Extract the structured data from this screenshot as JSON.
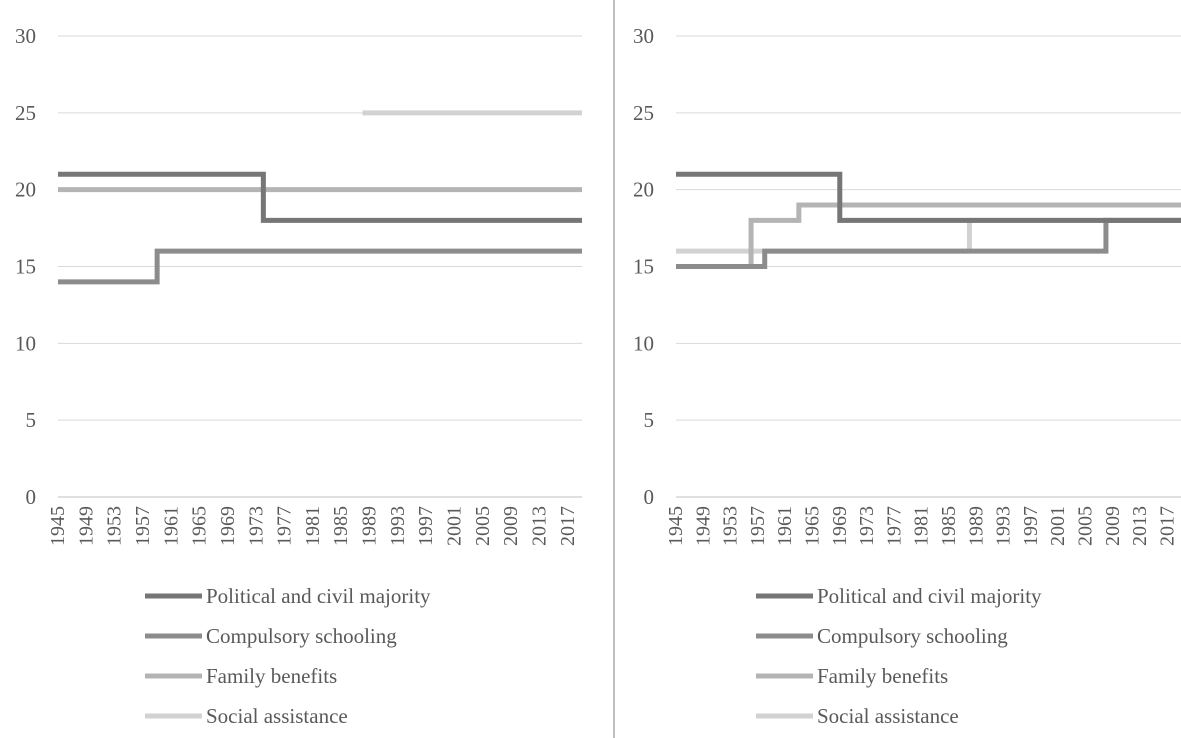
{
  "palette": {
    "political": "#767676",
    "schooling": "#8c8c8c",
    "family": "#b4b4b4",
    "social": "#d2d2d2",
    "grid": "#d9d9d9",
    "divider": "#bfbfbf",
    "text": "#595959"
  },
  "chart_data": [
    {
      "type": "line",
      "step": true,
      "title": "",
      "xlabel": "",
      "ylabel": "",
      "ylim": [
        0,
        30
      ],
      "yticks": [
        "0",
        "5",
        "10",
        "15",
        "20",
        "25",
        "30"
      ],
      "xlim": [
        1945,
        2019
      ],
      "xticks": [
        "1945",
        "1949",
        "1953",
        "1957",
        "1961",
        "1965",
        "1969",
        "1973",
        "1977",
        "1981",
        "1985",
        "1989",
        "1993",
        "1997",
        "2001",
        "2005",
        "2009",
        "2013",
        "2017"
      ],
      "grid": true,
      "legend_position": "bottom",
      "series": [
        {
          "name": "Political and civil majority",
          "color_key": "political",
          "x": [
            1945,
            1974,
            2019
          ],
          "y": [
            21,
            18,
            18
          ]
        },
        {
          "name": "Compulsory schooling",
          "color_key": "schooling",
          "x": [
            1945,
            1959,
            2019
          ],
          "y": [
            14,
            16,
            16
          ]
        },
        {
          "name": "Family benefits",
          "color_key": "family",
          "x": [
            1945,
            2019
          ],
          "y": [
            20,
            20
          ]
        },
        {
          "name": "Social assistance",
          "color_key": "social",
          "x": [
            1988,
            2019
          ],
          "y": [
            25,
            25
          ]
        }
      ]
    },
    {
      "type": "line",
      "step": true,
      "title": "",
      "xlabel": "",
      "ylabel": "",
      "ylim": [
        0,
        30
      ],
      "yticks": [
        "0",
        "5",
        "10",
        "15",
        "20",
        "25",
        "30"
      ],
      "xlim": [
        1945,
        2019
      ],
      "xticks": [
        "1945",
        "1949",
        "1953",
        "1957",
        "1961",
        "1965",
        "1969",
        "1973",
        "1977",
        "1981",
        "1985",
        "1989",
        "1993",
        "1997",
        "2001",
        "2005",
        "2009",
        "2013",
        "2017"
      ],
      "grid": true,
      "legend_position": "bottom",
      "series": [
        {
          "name": "Political and civil majority",
          "color_key": "political",
          "x": [
            1945,
            1969,
            1988,
            2019
          ],
          "y": [
            21,
            18,
            18,
            18
          ]
        },
        {
          "name": "Compulsory schooling",
          "color_key": "schooling",
          "x": [
            1945,
            1958,
            1988,
            2008,
            2019
          ],
          "y": [
            15,
            16,
            16,
            18,
            18
          ]
        },
        {
          "name": "Family benefits",
          "color_key": "family",
          "x": [
            1945,
            1956,
            1963,
            2019
          ],
          "y": [
            15,
            18,
            19,
            19
          ]
        },
        {
          "name": "Social assistance",
          "color_key": "social",
          "x": [
            1945,
            1988,
            2019
          ],
          "y": [
            16,
            18,
            18
          ]
        }
      ]
    }
  ]
}
